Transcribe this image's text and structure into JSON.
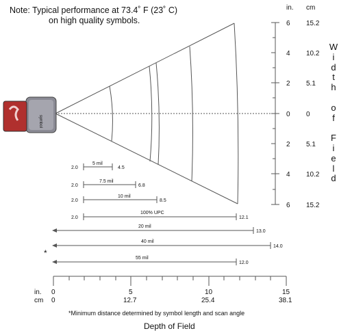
{
  "note": {
    "line1": "Note:  Typical performance at 73.4˚ F (23˚ C)",
    "line2": "on high quality symbols."
  },
  "scanner": {
    "brand": "symbol"
  },
  "width_scale": {
    "unit_in": "in.",
    "unit_cm": "cm",
    "ticks": [
      {
        "in": "6",
        "cm": "15.2"
      },
      {
        "in": "4",
        "cm": "10.2"
      },
      {
        "in": "2",
        "cm": "5.1"
      },
      {
        "in": "0",
        "cm": "0"
      },
      {
        "in": "2",
        "cm": "5.1"
      },
      {
        "in": "4",
        "cm": "10.2"
      },
      {
        "in": "6",
        "cm": "15.2"
      }
    ],
    "title_letters": [
      "W",
      "i",
      "d",
      "t",
      "h",
      "",
      "o",
      "f",
      "",
      "F",
      "i",
      "e",
      "l",
      "d"
    ]
  },
  "ranges": [
    {
      "label": "5 mil",
      "start": "2.0",
      "end": "4.5"
    },
    {
      "label": "7.5 mil",
      "start": "2.0",
      "end": "6.8"
    },
    {
      "label": "10 mil",
      "start": "2.0",
      "end": "8.5"
    },
    {
      "label": "100% UPC",
      "start": "2.0",
      "end": "12.1"
    },
    {
      "label": "20 mil",
      "start": "",
      "end": "13.0"
    },
    {
      "label": "40 mil",
      "start": "",
      "end": "14.0"
    },
    {
      "label": "55 mil",
      "start": "",
      "end": "12.0"
    }
  ],
  "asterisk": "*",
  "depth_scale": {
    "unit_in": "in.",
    "unit_cm": "cm",
    "ticks": [
      {
        "in": "0",
        "cm": "0"
      },
      {
        "in": "5",
        "cm": "12.7"
      },
      {
        "in": "10",
        "cm": "25.4"
      },
      {
        "in": "15",
        "cm": "38.1"
      }
    ]
  },
  "footnote": "*Minimum distance determined by symbol length and scan angle",
  "x_title": "Depth of Field",
  "colors": {
    "lines": "#555555",
    "scanner_body": "#8a8a94",
    "scanner_label": "#b0302e"
  }
}
